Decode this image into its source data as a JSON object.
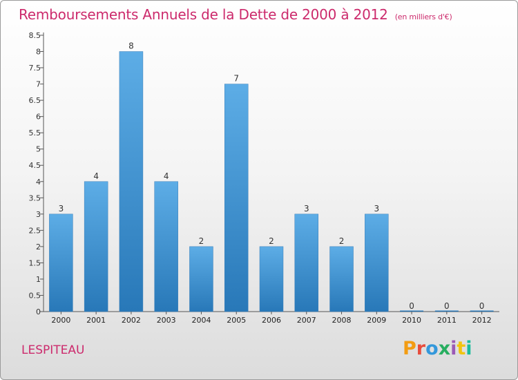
{
  "header": {
    "title": "Remboursements Annuels de la Dette de 2000 à 2012",
    "subtitle": "(en milliers d'€)"
  },
  "footer": {
    "commune": "LESPITEAU",
    "logo_text": "Proxiti",
    "logo_colors": [
      "#f39c12",
      "#e74c3c",
      "#3498db",
      "#27ae60",
      "#9b59b6",
      "#f1c40f",
      "#1abc9c"
    ]
  },
  "colors": {
    "bar_top": "#5dade6",
    "bar_bottom": "#2878b8",
    "axis": "#555555",
    "title": "#cc2a6c"
  },
  "chart_data": {
    "type": "bar",
    "title": "Remboursements Annuels de la Dette de 2000 à 2012",
    "subtitle": "(en milliers d'€)",
    "categories": [
      "2000",
      "2001",
      "2002",
      "2003",
      "2004",
      "2005",
      "2006",
      "2007",
      "2008",
      "2009",
      "2010",
      "2011",
      "2012"
    ],
    "values": [
      3,
      4,
      8,
      4,
      2,
      7,
      2,
      3,
      2,
      3,
      0,
      0,
      0
    ],
    "data_labels": [
      "3",
      "4",
      "8",
      "4",
      "2",
      "7",
      "2",
      "3",
      "2",
      "3",
      "0",
      "0",
      "0"
    ],
    "yticks": [
      "0",
      "0.5",
      "1",
      "1.5",
      "2",
      "2.5",
      "3",
      "3.5",
      "4",
      "4.5",
      "5",
      "5.5",
      "6",
      "6.5",
      "7",
      "7.5",
      "8",
      "8.5"
    ],
    "ylim": [
      0,
      8.5
    ],
    "grid": false,
    "legend": "none"
  }
}
